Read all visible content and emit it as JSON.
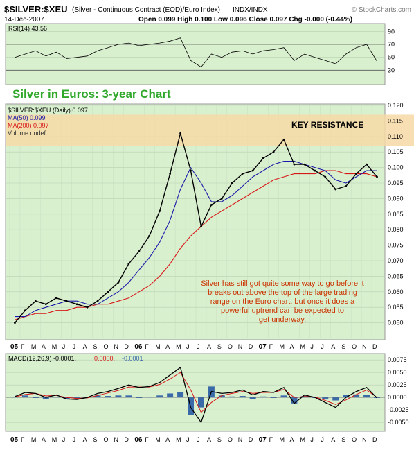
{
  "header": {
    "symbol": "$SILVER:$XEU",
    "description": "(Silver - Continuous Contract (EOD)/Euro Index)",
    "exchange": "INDX/INDX",
    "watermark": "© StockCharts.com",
    "date": "14-Dec-2007",
    "ohlc_text": "Open 0.099  High 0.100  Low 0.096  Close 0.097  Chg -0.000 (-0.44%)"
  },
  "rsi": {
    "label": "RSI(14) 43.56",
    "ticks": [
      "90",
      "70",
      "50",
      "30"
    ]
  },
  "main": {
    "title": "Silver in Euros: 3-year Chart",
    "legend": {
      "price": "$SILVER:$XEU (Daily) 0.097",
      "ma50": "MA(50) 0.099",
      "ma200": "MA(200) 0.097",
      "volume": "Volume undef"
    },
    "resistance_label": "KEY RESISTANCE",
    "annotation_lines": [
      "Silver has still got quite some way to go before it",
      "breaks out above the top of the large trading",
      "range on the Euro chart, but once it does a",
      "powerful uptrend can be expected to",
      "get underway."
    ],
    "y_ticks": [
      "0.120",
      "0.115",
      "0.110",
      "0.105",
      "0.100",
      "0.095",
      "0.090",
      "0.085",
      "0.080",
      "0.075",
      "0.070",
      "0.065",
      "0.060",
      "0.055",
      "0.050"
    ]
  },
  "macd": {
    "label_main": "MACD(12,26,9) -0.0001,",
    "label_signal": "0.0000,",
    "label_hist": "-0.0001",
    "y_ticks": [
      "0.0075",
      "0.0050",
      "0.0025",
      "0.0000",
      "-0.0025",
      "-0.0050"
    ]
  },
  "x_axis_labels": [
    "05",
    "F",
    "M",
    "A",
    "M",
    "J",
    "J",
    "A",
    "S",
    "O",
    "N",
    "D",
    "06",
    "F",
    "M",
    "A",
    "M",
    "J",
    "J",
    "A",
    "S",
    "O",
    "N",
    "D",
    "07",
    "F",
    "M",
    "A",
    "M",
    "J",
    "J",
    "A",
    "S",
    "O",
    "N",
    "D"
  ],
  "colors": {
    "panel_bg": "#d9f0cf",
    "price": "#000000",
    "ma50": "#1a1aa8",
    "ma200": "#d81818",
    "title": "#2fa82a",
    "annotation": "#cc3300",
    "resistance_band": "#f6d9a6",
    "macd_hist": "#3a6aa8"
  },
  "chart_data": {
    "type": "line",
    "title": "Silver in Euros: 3-year Chart",
    "xlabel": "",
    "ylabel": "",
    "ylim": [
      0.045,
      0.12
    ],
    "x": [
      "Jan 05",
      "Feb 05",
      "Mar 05",
      "Apr 05",
      "May 05",
      "Jun 05",
      "Jul 05",
      "Aug 05",
      "Sep 05",
      "Oct 05",
      "Nov 05",
      "Dec 05",
      "Jan 06",
      "Feb 06",
      "Mar 06",
      "Apr 06",
      "May 06",
      "Jun 06",
      "Jul 06",
      "Aug 06",
      "Sep 06",
      "Oct 06",
      "Nov 06",
      "Dec 06",
      "Jan 07",
      "Feb 07",
      "Mar 07",
      "Apr 07",
      "May 07",
      "Jun 07",
      "Jul 07",
      "Aug 07",
      "Sep 07",
      "Oct 07",
      "Nov 07",
      "Dec 07"
    ],
    "series": [
      {
        "name": "$SILVER:$XEU",
        "values": [
          0.05,
          0.054,
          0.057,
          0.056,
          0.058,
          0.057,
          0.056,
          0.055,
          0.057,
          0.06,
          0.063,
          0.069,
          0.073,
          0.078,
          0.086,
          0.098,
          0.111,
          0.099,
          0.081,
          0.088,
          0.09,
          0.095,
          0.098,
          0.099,
          0.103,
          0.105,
          0.109,
          0.101,
          0.101,
          0.099,
          0.097,
          0.093,
          0.094,
          0.098,
          0.101,
          0.097
        ]
      },
      {
        "name": "MA(50)",
        "values": [
          0.052,
          0.052,
          0.054,
          0.055,
          0.056,
          0.057,
          0.057,
          0.056,
          0.056,
          0.058,
          0.06,
          0.063,
          0.067,
          0.071,
          0.076,
          0.083,
          0.093,
          0.1,
          0.095,
          0.089,
          0.089,
          0.091,
          0.094,
          0.097,
          0.099,
          0.101,
          0.102,
          0.102,
          0.101,
          0.1,
          0.099,
          0.096,
          0.095,
          0.097,
          0.099,
          0.099
        ]
      },
      {
        "name": "MA(200)",
        "values": [
          0.051,
          0.052,
          0.053,
          0.053,
          0.054,
          0.054,
          0.055,
          0.055,
          0.056,
          0.056,
          0.057,
          0.058,
          0.06,
          0.062,
          0.065,
          0.069,
          0.074,
          0.078,
          0.081,
          0.084,
          0.086,
          0.088,
          0.09,
          0.092,
          0.094,
          0.096,
          0.097,
          0.098,
          0.098,
          0.098,
          0.099,
          0.099,
          0.098,
          0.098,
          0.098,
          0.097
        ]
      }
    ],
    "resistance_band": [
      0.107,
      0.117
    ],
    "rsi_values": [
      50,
      55,
      60,
      52,
      58,
      48,
      50,
      52,
      60,
      65,
      70,
      72,
      68,
      70,
      72,
      75,
      80,
      45,
      35,
      55,
      50,
      58,
      60,
      55,
      60,
      62,
      65,
      45,
      55,
      50,
      45,
      40,
      55,
      65,
      70,
      44
    ],
    "macd_values": [
      0.0002,
      0.001,
      0.0008,
      0.0,
      0.0005,
      -0.0003,
      -0.0004,
      0.0,
      0.0008,
      0.0012,
      0.0018,
      0.0025,
      0.002,
      0.0022,
      0.003,
      0.0045,
      0.006,
      -0.002,
      -0.005,
      0.0012,
      0.0008,
      0.001,
      0.0015,
      0.0005,
      0.0012,
      0.001,
      0.002,
      -0.0012,
      0.0005,
      0.0,
      -0.001,
      -0.002,
      0.0,
      0.0012,
      0.002,
      -0.0001
    ],
    "macd_signal_values": [
      0.0001,
      0.0006,
      0.0008,
      0.0003,
      0.0004,
      0.0,
      -0.0002,
      -0.0001,
      0.0004,
      0.0009,
      0.0014,
      0.0021,
      0.0021,
      0.0021,
      0.0026,
      0.0037,
      0.005,
      0.0015,
      -0.003,
      -0.001,
      0.0004,
      0.0008,
      0.0012,
      0.0008,
      0.001,
      0.001,
      0.0016,
      0.0,
      0.0002,
      0.0001,
      -0.0006,
      -0.0014,
      -0.0005,
      0.0006,
      0.0015,
      0.0
    ]
  }
}
